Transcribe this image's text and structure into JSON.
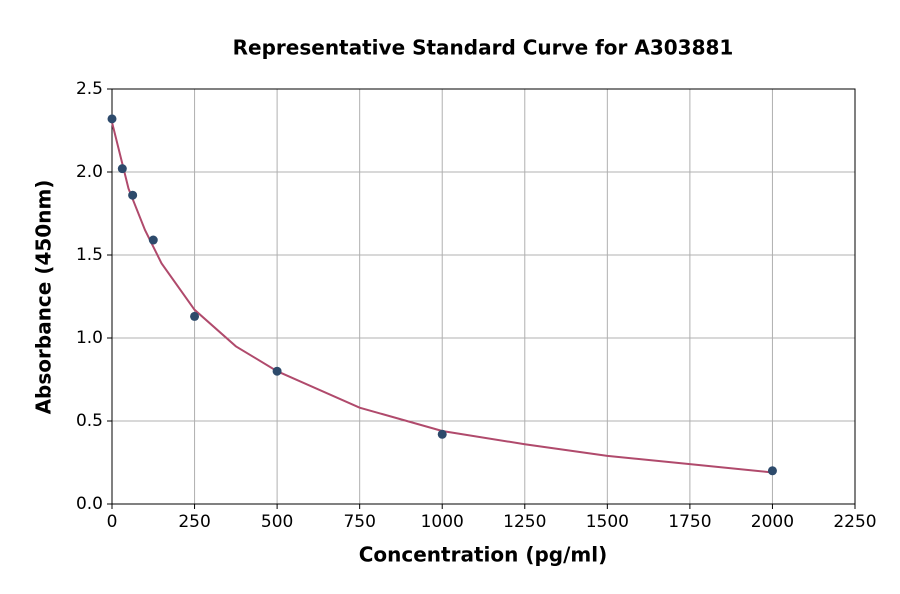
{
  "chart_data": {
    "type": "scatter",
    "title": "Representative Standard Curve for A303881",
    "x_label": "Concentration (pg/ml)",
    "y_label": "Absorbance (450nm)",
    "x": [
      0,
      31.25,
      62.5,
      125,
      250,
      500,
      1000,
      2000
    ],
    "values": [
      2.32,
      2.02,
      1.86,
      1.59,
      1.13,
      0.8,
      0.42,
      0.2
    ],
    "color": "#2d4a6b",
    "curve": {
      "x": [
        0,
        50,
        100,
        150,
        250,
        375,
        500,
        750,
        1000,
        1250,
        1500,
        1750,
        2000
      ],
      "values": [
        2.3,
        1.9,
        1.65,
        1.45,
        1.17,
        0.95,
        0.8,
        0.58,
        0.44,
        0.36,
        0.29,
        0.24,
        0.19
      ],
      "color": "#b04a6c"
    },
    "xlim": [
      0,
      2250
    ],
    "xticks": [
      0,
      250,
      500,
      750,
      1000,
      1250,
      1500,
      1750,
      2000,
      2250
    ],
    "ylim": [
      0,
      2.5
    ],
    "yticks": [
      {
        "value": 0,
        "label": "0.0"
      },
      0.5,
      {
        "value": 1,
        "label": "1.0"
      },
      1.5,
      {
        "value": 2,
        "label": "2.0"
      },
      2.5
    ],
    "grid": true
  }
}
